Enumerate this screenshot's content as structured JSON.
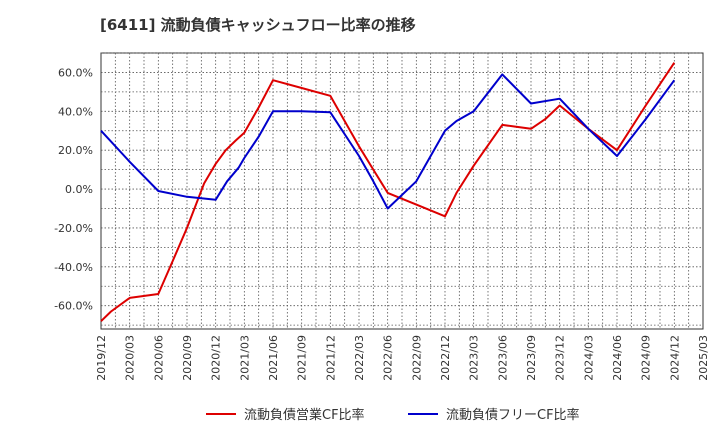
{
  "chart_data": {
    "type": "line",
    "title": "[6411]  流動負債キャッシュフロー比率の推移",
    "xlabel": "",
    "ylabel": "",
    "x": [
      "2019/12",
      "2020/03",
      "2020/06",
      "2020/09",
      "2020/12",
      "2021/03",
      "2021/06",
      "2021/09",
      "2021/12",
      "2022/03",
      "2022/06",
      "2022/09",
      "2022/12",
      "2023/03",
      "2023/06",
      "2023/09",
      "2023/12",
      "2024/03",
      "2024/06",
      "2024/09",
      "2024/12",
      "2025/03"
    ],
    "ylim": [
      -72,
      70
    ],
    "yticks": [
      60,
      40,
      20,
      0,
      -20,
      -40,
      -60
    ],
    "ytick_labels": [
      "60.0%",
      "40.0%",
      "20.0%",
      "0.0%",
      "-20.0%",
      "-40.0%",
      "-60.0%"
    ],
    "grid": true,
    "legend_position": "bottom",
    "series": [
      {
        "name": "流動負債営業CF比率",
        "color": "#dd0000",
        "points": [
          [
            0,
            -68
          ],
          [
            0.35,
            -63
          ],
          [
            1,
            -56
          ],
          [
            2,
            -54
          ],
          [
            2.5,
            -37
          ],
          [
            3,
            -20
          ],
          [
            3.6,
            3
          ],
          [
            4,
            13
          ],
          [
            4.35,
            20
          ],
          [
            4.7,
            25
          ],
          [
            5,
            29
          ],
          [
            5.5,
            42
          ],
          [
            6,
            56
          ],
          [
            7,
            52
          ],
          [
            8,
            48
          ],
          [
            9,
            22
          ],
          [
            9.5,
            10
          ],
          [
            10,
            -2
          ],
          [
            11,
            -8
          ],
          [
            12,
            -14
          ],
          [
            12.4,
            -2
          ],
          [
            13,
            12
          ],
          [
            14,
            33
          ],
          [
            15,
            31
          ],
          [
            15.5,
            36
          ],
          [
            16,
            43
          ],
          [
            17,
            31
          ],
          [
            18,
            20
          ],
          [
            19,
            43
          ],
          [
            20,
            65
          ]
        ]
      },
      {
        "name": "流動負債フリーCF比率",
        "color": "#0000cc",
        "points": [
          [
            0,
            30
          ],
          [
            1,
            14
          ],
          [
            2,
            -1
          ],
          [
            3,
            -4
          ],
          [
            4,
            -5.5
          ],
          [
            4.4,
            4
          ],
          [
            4.8,
            11
          ],
          [
            5,
            16
          ],
          [
            5.5,
            27
          ],
          [
            6,
            40
          ],
          [
            7,
            40
          ],
          [
            8,
            39.5
          ],
          [
            9,
            17
          ],
          [
            9.5,
            4
          ],
          [
            10,
            -10
          ],
          [
            11,
            4
          ],
          [
            12,
            30
          ],
          [
            12.4,
            35
          ],
          [
            13,
            40
          ],
          [
            14,
            59
          ],
          [
            15,
            44
          ],
          [
            16,
            46.5
          ],
          [
            17,
            31
          ],
          [
            18,
            17
          ],
          [
            19,
            36
          ],
          [
            20,
            56
          ]
        ]
      }
    ]
  }
}
